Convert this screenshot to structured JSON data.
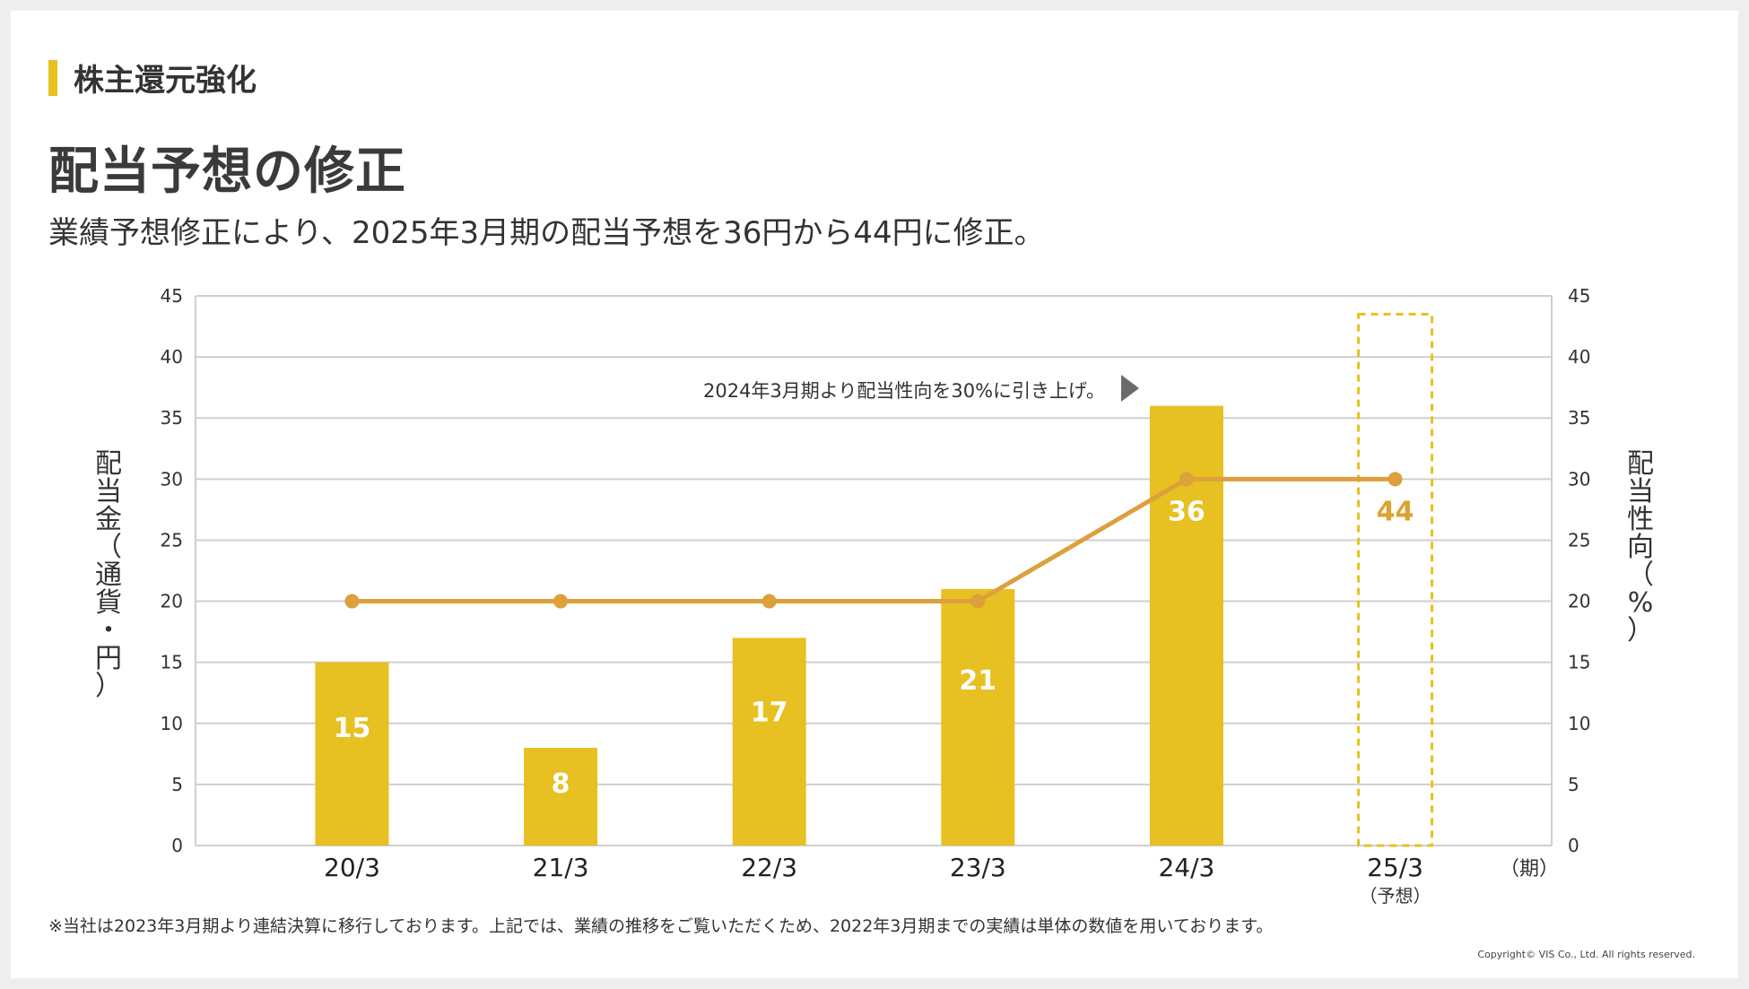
{
  "section": {
    "label": "株主還元強化",
    "accent_color": "#e8c11f"
  },
  "page": {
    "title": "配当予想の修正",
    "subtitle": "業績予想修正により、2025年3月期の配当予想を36円から44円に修正。"
  },
  "chart_data": {
    "type": "bar",
    "categories": [
      "20/3",
      "21/3",
      "22/3",
      "23/3",
      "24/3",
      "25/3"
    ],
    "forecast_note": "（予想）",
    "period_unit": "（期）",
    "ylabel_left": "配当金（通貨・円）",
    "ylabel_right": "配当性向（%）",
    "ylim": [
      0,
      45
    ],
    "yticks": [
      0,
      5,
      10,
      15,
      20,
      25,
      30,
      35,
      40,
      45
    ],
    "series": [
      {
        "name": "配当金",
        "type": "bar",
        "values": [
          15,
          8,
          17,
          21,
          36,
          44
        ],
        "labels": [
          "15",
          "8",
          "17",
          "21",
          "36",
          "44"
        ],
        "forecast_index": 5,
        "color": "#e7c021",
        "forecast_color": "#dba32f"
      },
      {
        "name": "配当性向",
        "type": "line",
        "values": [
          20,
          20,
          20,
          20,
          30,
          30
        ],
        "color": "#dda03c"
      }
    ],
    "annotation": "2024年3月期より配当性向を30%に引き上げ。",
    "grid": true
  },
  "footnote": "※当社は2023年3月期より連結決算に移行しております。上記では、業績の推移をご覧いただくため、2022年3月期までの実績は単体の数値を用いております。",
  "copyright": "Copyright© VIS Co., Ltd. All rights reserved."
}
